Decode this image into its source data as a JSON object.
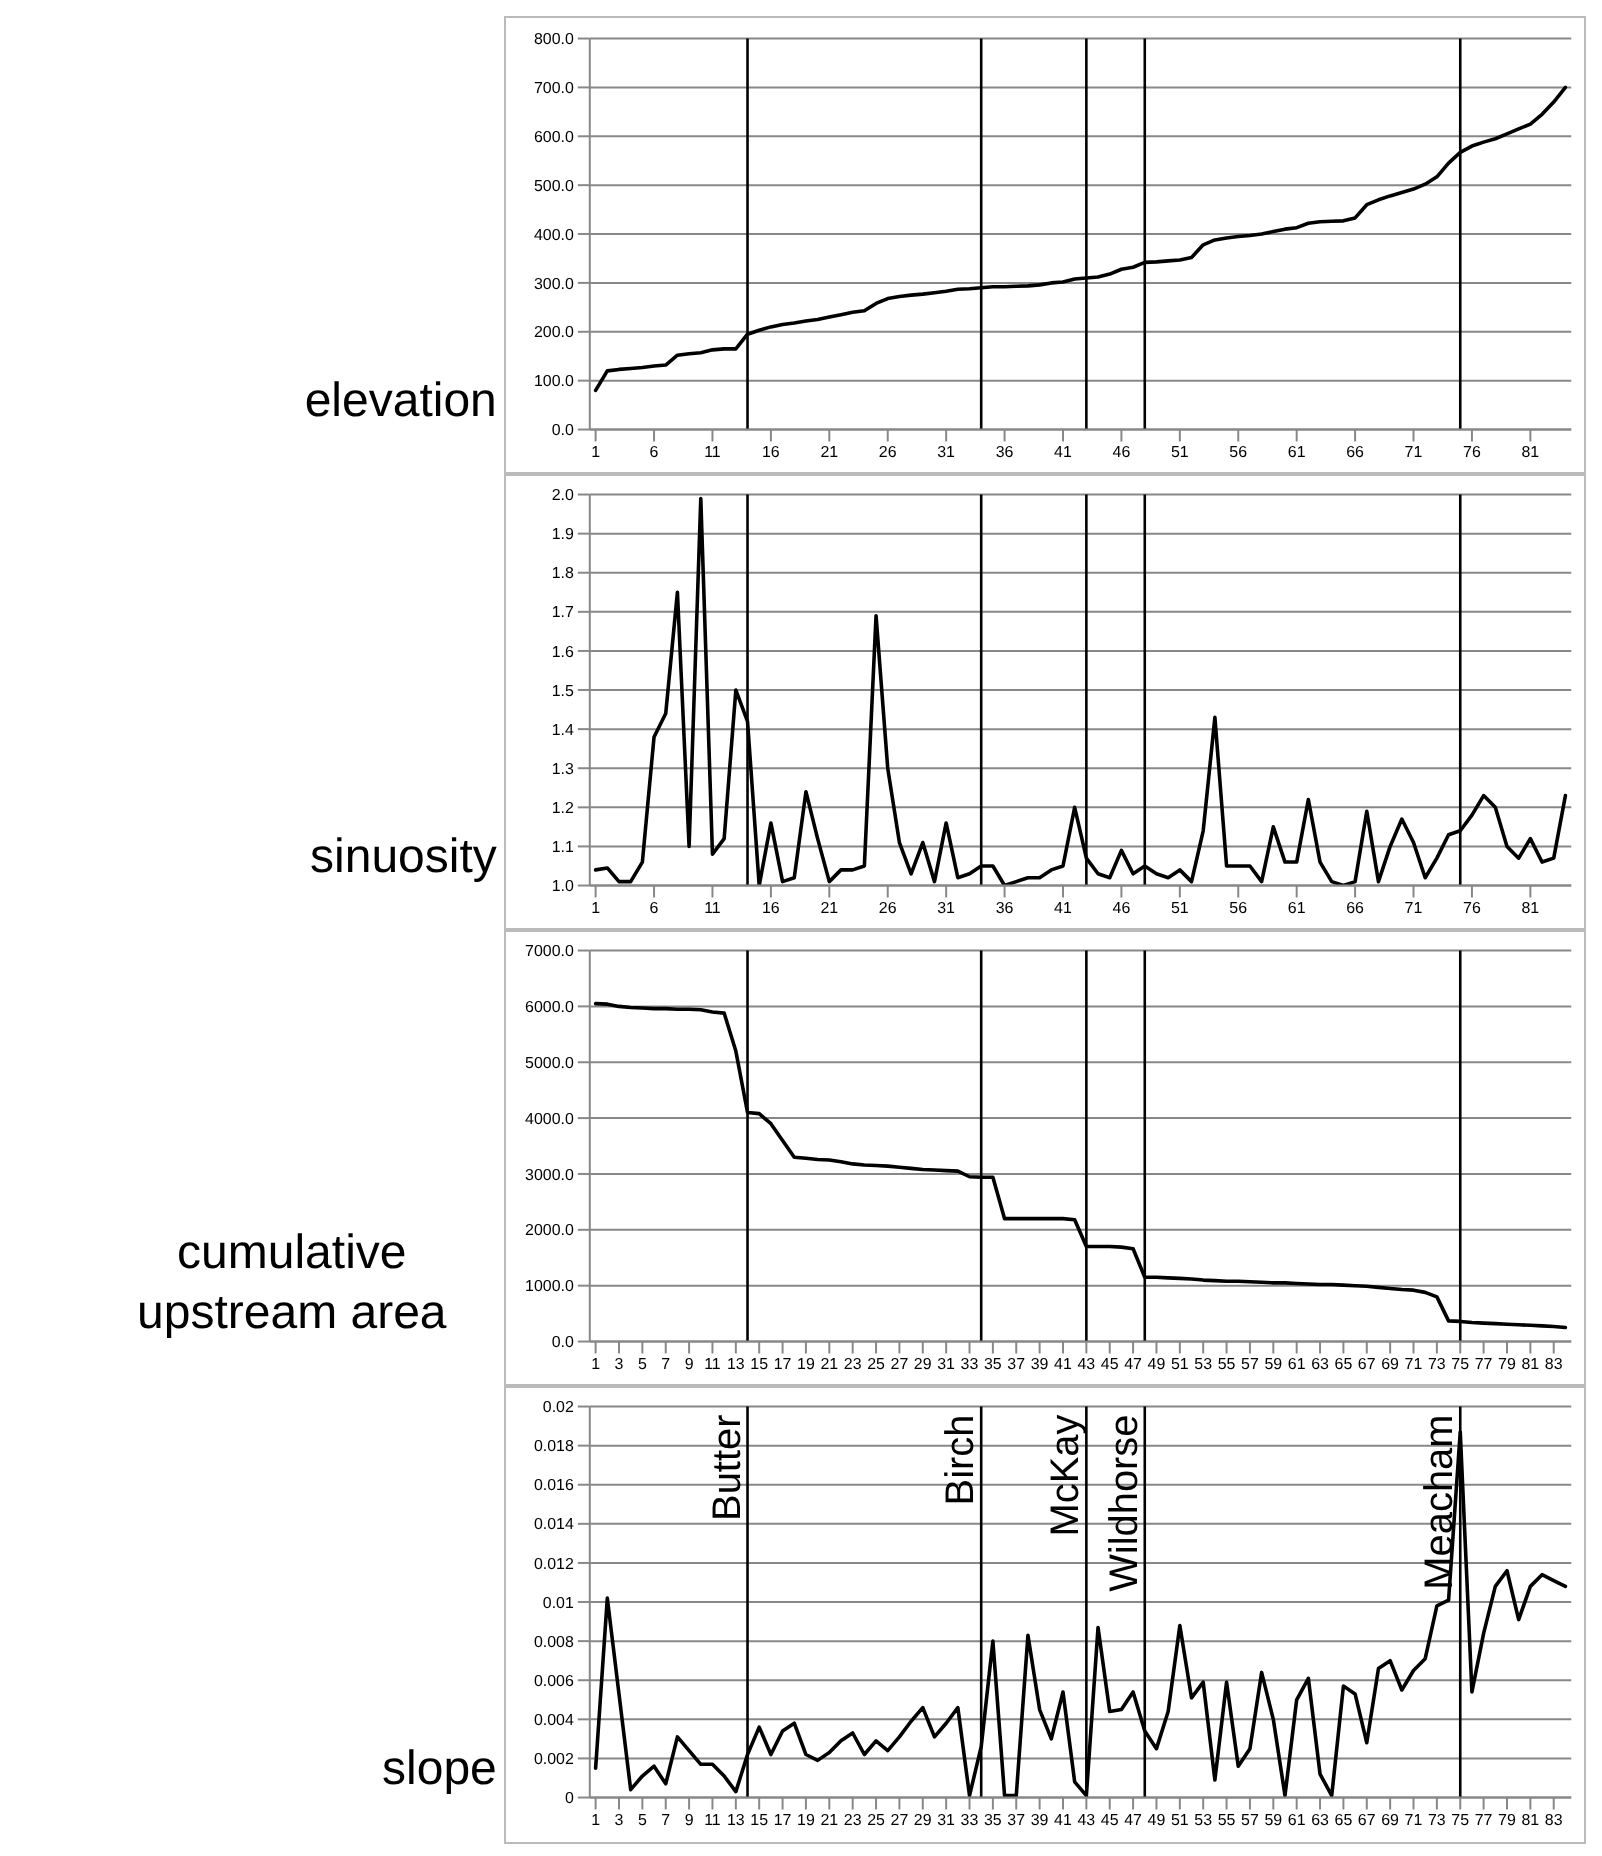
{
  "chart_data": [
    {
      "type": "line",
      "ylabel": "elevation",
      "grid": "y",
      "line_style": "solid",
      "x": [
        1,
        2,
        3,
        4,
        5,
        6,
        7,
        8,
        9,
        10,
        11,
        12,
        13,
        14,
        15,
        16,
        17,
        18,
        19,
        20,
        21,
        22,
        23,
        24,
        25,
        26,
        27,
        28,
        29,
        30,
        31,
        32,
        33,
        34,
        35,
        36,
        37,
        38,
        39,
        40,
        41,
        42,
        43,
        44,
        45,
        46,
        47,
        48,
        49,
        50,
        51,
        52,
        53,
        54,
        55,
        56,
        57,
        58,
        59,
        60,
        61,
        62,
        63,
        64,
        65,
        66,
        67,
        68,
        69,
        70,
        71,
        72,
        73,
        74,
        75,
        76,
        77,
        78,
        79,
        80,
        81,
        82,
        83,
        84
      ],
      "values": [
        80,
        120,
        123,
        125,
        127,
        130,
        132,
        152,
        155,
        157,
        163,
        165,
        165,
        195,
        203,
        210,
        215,
        218,
        222,
        225,
        230,
        235,
        240,
        243,
        258,
        268,
        272,
        275,
        277,
        280,
        283,
        287,
        288,
        290,
        292,
        292,
        293,
        294,
        296,
        300,
        302,
        308,
        310,
        312,
        318,
        328,
        332,
        342,
        343,
        345,
        347,
        352,
        378,
        388,
        392,
        395,
        397,
        400,
        405,
        410,
        413,
        422,
        425,
        426,
        427,
        433,
        460,
        470,
        478,
        485,
        492,
        502,
        517,
        545,
        567,
        580,
        588,
        595,
        605,
        615,
        625,
        645,
        670,
        700
      ],
      "color": "#000000",
      "xlim": [
        0.5,
        84.5
      ],
      "xticks": [
        1,
        6,
        11,
        16,
        21,
        26,
        31,
        36,
        41,
        46,
        51,
        56,
        61,
        66,
        71,
        76,
        81
      ],
      "ylim": [
        0,
        800
      ],
      "yticks": [
        {
          "value": 0,
          "label": "0.0"
        },
        {
          "value": 100,
          "label": "100.0"
        },
        {
          "value": 200,
          "label": "200.0"
        },
        {
          "value": 300,
          "label": "300.0"
        },
        {
          "value": 400,
          "label": "400.0"
        },
        {
          "value": 500,
          "label": "500.0"
        },
        {
          "value": 600,
          "label": "600.0"
        },
        {
          "value": 700,
          "label": "700.0"
        },
        {
          "value": 800,
          "label": "800.0"
        }
      ],
      "ref_lines": [
        {
          "axis": "x",
          "value": 14,
          "color": "#000000"
        },
        {
          "axis": "x",
          "value": 34,
          "color": "#000000"
        },
        {
          "axis": "x",
          "value": 43,
          "color": "#000000"
        },
        {
          "axis": "x",
          "value": 48,
          "color": "#000000"
        },
        {
          "axis": "x",
          "value": 75,
          "color": "#000000"
        }
      ]
    },
    {
      "type": "line",
      "ylabel": "sinuosity",
      "grid": "y",
      "line_style": "solid",
      "x": [
        1,
        2,
        3,
        4,
        5,
        6,
        7,
        8,
        9,
        10,
        11,
        12,
        13,
        14,
        15,
        16,
        17,
        18,
        19,
        20,
        21,
        22,
        23,
        24,
        25,
        26,
        27,
        28,
        29,
        30,
        31,
        32,
        33,
        34,
        35,
        36,
        37,
        38,
        39,
        40,
        41,
        42,
        43,
        44,
        45,
        46,
        47,
        48,
        49,
        50,
        51,
        52,
        53,
        54,
        55,
        56,
        57,
        58,
        59,
        60,
        61,
        62,
        63,
        64,
        65,
        66,
        67,
        68,
        69,
        70,
        71,
        72,
        73,
        74,
        75,
        76,
        77,
        78,
        79,
        80,
        81,
        82,
        83,
        84
      ],
      "values": [
        1.04,
        1.045,
        1.01,
        1.01,
        1.06,
        1.38,
        1.44,
        1.75,
        1.1,
        1.99,
        1.08,
        1.12,
        1.5,
        1.42,
        1.0,
        1.16,
        1.01,
        1.02,
        1.24,
        1.12,
        1.01,
        1.04,
        1.04,
        1.05,
        1.69,
        1.3,
        1.11,
        1.03,
        1.11,
        1.01,
        1.16,
        1.02,
        1.03,
        1.05,
        1.05,
        1.0,
        1.01,
        1.02,
        1.02,
        1.04,
        1.05,
        1.2,
        1.07,
        1.03,
        1.02,
        1.09,
        1.03,
        1.05,
        1.03,
        1.02,
        1.04,
        1.01,
        1.14,
        1.43,
        1.05,
        1.05,
        1.05,
        1.01,
        1.15,
        1.06,
        1.06,
        1.22,
        1.06,
        1.01,
        1.0,
        1.01,
        1.19,
        1.01,
        1.1,
        1.17,
        1.11,
        1.02,
        1.07,
        1.13,
        1.14,
        1.18,
        1.23,
        1.2,
        1.1,
        1.07,
        1.12,
        1.06,
        1.07,
        1.23
      ],
      "color": "#000000",
      "xlim": [
        0.5,
        84.5
      ],
      "xticks": [
        1,
        6,
        11,
        16,
        21,
        26,
        31,
        36,
        41,
        46,
        51,
        56,
        61,
        66,
        71,
        76,
        81
      ],
      "ylim": [
        1,
        2
      ],
      "yticks": [
        {
          "value": 1,
          "label": "1.0"
        },
        {
          "value": 1.1,
          "label": "1.1"
        },
        {
          "value": 1.2,
          "label": "1.2"
        },
        {
          "value": 1.3,
          "label": "1.3"
        },
        {
          "value": 1.4,
          "label": "1.4"
        },
        {
          "value": 1.5,
          "label": "1.5"
        },
        {
          "value": 1.6,
          "label": "1.6"
        },
        {
          "value": 1.7,
          "label": "1.7"
        },
        {
          "value": 1.8,
          "label": "1.8"
        },
        {
          "value": 1.9,
          "label": "1.9"
        },
        {
          "value": 2,
          "label": "2.0"
        }
      ],
      "ref_lines": [
        {
          "axis": "x",
          "value": 14,
          "color": "#000000"
        },
        {
          "axis": "x",
          "value": 34,
          "color": "#000000"
        },
        {
          "axis": "x",
          "value": 43,
          "color": "#000000"
        },
        {
          "axis": "x",
          "value": 48,
          "color": "#000000"
        },
        {
          "axis": "x",
          "value": 75,
          "color": "#000000"
        }
      ]
    },
    {
      "type": "line",
      "ylabel": "cumulative upstream area",
      "grid": "y",
      "line_style": "solid",
      "x": [
        1,
        2,
        3,
        4,
        5,
        6,
        7,
        8,
        9,
        10,
        11,
        12,
        13,
        14,
        15,
        16,
        17,
        18,
        19,
        20,
        21,
        22,
        23,
        24,
        25,
        26,
        27,
        28,
        29,
        30,
        31,
        32,
        33,
        34,
        35,
        36,
        37,
        38,
        39,
        40,
        41,
        42,
        43,
        44,
        45,
        46,
        47,
        48,
        49,
        50,
        51,
        52,
        53,
        54,
        55,
        56,
        57,
        58,
        59,
        60,
        61,
        62,
        63,
        64,
        65,
        66,
        67,
        68,
        69,
        70,
        71,
        72,
        73,
        74,
        75,
        76,
        77,
        78,
        79,
        80,
        81,
        82,
        83,
        84
      ],
      "values": [
        6050,
        6040,
        6000,
        5980,
        5970,
        5960,
        5960,
        5950,
        5950,
        5940,
        5900,
        5880,
        5200,
        4100,
        4080,
        3900,
        3600,
        3300,
        3280,
        3260,
        3250,
        3220,
        3180,
        3160,
        3150,
        3140,
        3120,
        3100,
        3080,
        3070,
        3060,
        3050,
        2950,
        2940,
        2940,
        2200,
        2200,
        2200,
        2200,
        2200,
        2200,
        2180,
        1700,
        1700,
        1700,
        1690,
        1660,
        1150,
        1150,
        1140,
        1130,
        1120,
        1100,
        1090,
        1080,
        1080,
        1070,
        1060,
        1050,
        1050,
        1040,
        1030,
        1020,
        1020,
        1010,
        1000,
        990,
        970,
        950,
        930,
        920,
        880,
        800,
        370,
        360,
        340,
        330,
        320,
        310,
        300,
        290,
        280,
        270,
        250
      ],
      "color": "#000000",
      "xlim": [
        0.5,
        84.5
      ],
      "xticks": [
        1,
        3,
        5,
        7,
        9,
        11,
        13,
        15,
        17,
        19,
        21,
        23,
        25,
        27,
        29,
        31,
        33,
        35,
        37,
        39,
        41,
        43,
        45,
        47,
        49,
        51,
        53,
        55,
        57,
        59,
        61,
        63,
        65,
        67,
        69,
        71,
        73,
        75,
        77,
        79,
        81,
        83
      ],
      "ylim": [
        0,
        7000
      ],
      "yticks": [
        {
          "value": 0,
          "label": "0.0"
        },
        {
          "value": 1000,
          "label": "1000.0"
        },
        {
          "value": 2000,
          "label": "2000.0"
        },
        {
          "value": 3000,
          "label": "3000.0"
        },
        {
          "value": 4000,
          "label": "4000.0"
        },
        {
          "value": 5000,
          "label": "5000.0"
        },
        {
          "value": 6000,
          "label": "6000.0"
        },
        {
          "value": 7000,
          "label": "7000.0"
        }
      ],
      "ref_lines": [
        {
          "axis": "x",
          "value": 14,
          "color": "#000000"
        },
        {
          "axis": "x",
          "value": 34,
          "color": "#000000"
        },
        {
          "axis": "x",
          "value": 43,
          "color": "#000000"
        },
        {
          "axis": "x",
          "value": 48,
          "color": "#000000"
        },
        {
          "axis": "x",
          "value": 75,
          "color": "#000000"
        }
      ]
    },
    {
      "type": "line",
      "ylabel": "slope",
      "grid": "y",
      "line_style": "solid",
      "x": [
        1,
        2,
        3,
        4,
        5,
        6,
        7,
        8,
        9,
        10,
        11,
        12,
        13,
        14,
        15,
        16,
        17,
        18,
        19,
        20,
        21,
        22,
        23,
        24,
        25,
        26,
        27,
        28,
        29,
        30,
        31,
        32,
        33,
        34,
        35,
        36,
        37,
        38,
        39,
        40,
        41,
        42,
        43,
        44,
        45,
        46,
        47,
        48,
        49,
        50,
        51,
        52,
        53,
        54,
        55,
        56,
        57,
        58,
        59,
        60,
        61,
        62,
        63,
        64,
        65,
        66,
        67,
        68,
        69,
        70,
        71,
        72,
        73,
        74,
        75,
        76,
        77,
        78,
        79,
        80,
        81,
        82,
        83,
        84
      ],
      "values": [
        0.0015,
        0.0102,
        0.0053,
        0.0004,
        0.0011,
        0.0016,
        0.0007,
        0.0031,
        0.0024,
        0.0017,
        0.0017,
        0.0011,
        0.0003,
        0.0022,
        0.0036,
        0.0022,
        0.0034,
        0.0038,
        0.0022,
        0.0019,
        0.0023,
        0.0029,
        0.0033,
        0.0022,
        0.0029,
        0.0024,
        0.0031,
        0.0039,
        0.0046,
        0.0031,
        0.0038,
        0.0046,
        0.0001,
        0.0026,
        0.008,
        0.0001,
        0.0001,
        0.0083,
        0.0045,
        0.003,
        0.0054,
        0.0008,
        0.0001,
        0.0087,
        0.0044,
        0.0045,
        0.0054,
        0.0034,
        0.0025,
        0.0044,
        0.0088,
        0.0051,
        0.0059,
        0.0009,
        0.0059,
        0.0016,
        0.0025,
        0.0064,
        0.004,
        0.0001,
        0.005,
        0.0061,
        0.0012,
        0.0001,
        0.0057,
        0.0053,
        0.0028,
        0.0066,
        0.007,
        0.0055,
        0.0065,
        0.0071,
        0.0098,
        0.0101,
        0.0187,
        0.0054,
        0.0084,
        0.0108,
        0.0116,
        0.0091,
        0.0108,
        0.0114,
        0.0111,
        0.0108
      ],
      "color": "#000000",
      "xlim": [
        0.5,
        84.5
      ],
      "xticks": [
        1,
        3,
        5,
        7,
        9,
        11,
        13,
        15,
        17,
        19,
        21,
        23,
        25,
        27,
        29,
        31,
        33,
        35,
        37,
        39,
        41,
        43,
        45,
        47,
        49,
        51,
        53,
        55,
        57,
        59,
        61,
        63,
        65,
        67,
        69,
        71,
        73,
        75,
        77,
        79,
        81,
        83
      ],
      "ylim": [
        0,
        0.02
      ],
      "yticks": [
        0,
        0.002,
        0.004,
        0.006,
        0.008,
        0.01,
        0.012,
        0.014,
        0.016,
        0.018,
        0.02
      ],
      "ref_lines": [
        {
          "axis": "x",
          "value": 14,
          "label": "Butter",
          "color": "#000000"
        },
        {
          "axis": "x",
          "value": 34,
          "label": "Birch",
          "color": "#000000"
        },
        {
          "axis": "x",
          "value": 43,
          "label": "McKay",
          "color": "#000000"
        },
        {
          "axis": "x",
          "value": 48,
          "label": "Wildhorse",
          "color": "#000000"
        },
        {
          "axis": "x",
          "value": 75,
          "label": "Meacham",
          "color": "#000000"
        }
      ]
    }
  ]
}
